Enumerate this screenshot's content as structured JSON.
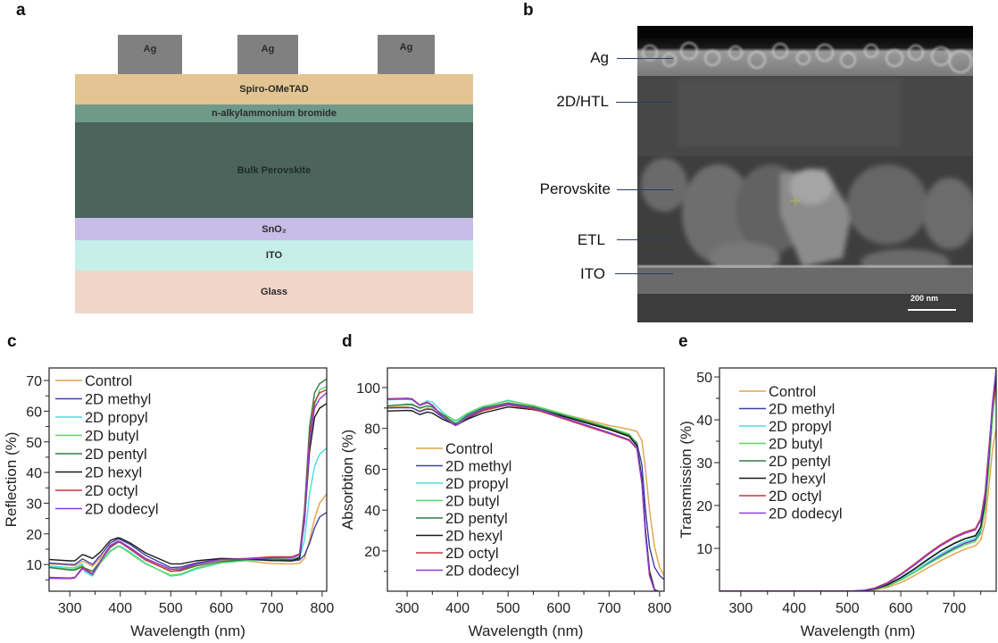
{
  "figure": {
    "panels": {
      "a": {
        "label": "a",
        "title": "Device structure schematic",
        "electrodes": [
          {
            "label": "Ag",
            "color": "#808080"
          },
          {
            "label": "Ag",
            "color": "#808080"
          },
          {
            "label": "Ag",
            "color": "#808080"
          }
        ],
        "layers": [
          {
            "label": "Spiro-OMeTAD",
            "color": "#e2c592"
          },
          {
            "label": "n-alkylammonium bromide",
            "color": "#6f9a8a"
          },
          {
            "label": "Bulk Perovskite",
            "color": "#4c655c"
          },
          {
            "label": "SnO₂",
            "color": "#c8bde6"
          },
          {
            "label": "ITO",
            "color": "#c6efe9"
          },
          {
            "label": "Glass",
            "color": "#f0d5c9"
          }
        ]
      },
      "b": {
        "label": "b",
        "title": "Cross-sectional SEM image",
        "annotations": [
          "Ag",
          "2D/HTL",
          "Perovskite",
          "ETL",
          "ITO"
        ],
        "scale_bar": "200 nm"
      }
    }
  },
  "legend": {
    "series": [
      {
        "name": "Control",
        "color": "#e3a24a"
      },
      {
        "name": "2D methyl",
        "color": "#3f3fa8"
      },
      {
        "name": "2D propyl",
        "color": "#49dde0"
      },
      {
        "name": "2D butyl",
        "color": "#5fd65f"
      },
      {
        "name": "2D pentyl",
        "color": "#2e7d43"
      },
      {
        "name": "2D hexyl",
        "color": "#1a1a1a"
      },
      {
        "name": "2D octyl",
        "color": "#cc3344"
      },
      {
        "name": "2D dodecyl",
        "color": "#8a3fd6"
      }
    ]
  },
  "chart_data": [
    {
      "panel": "c",
      "type": "line",
      "title": "",
      "xlabel": "Wavelength (nm)",
      "ylabel": "Reflection (%)",
      "xlim": [
        259,
        809
      ],
      "ylim": [
        1.3,
        74.1
      ],
      "xticks": [
        300,
        400,
        500,
        600,
        700,
        800
      ],
      "yticks": [
        10,
        20,
        30,
        40,
        50,
        60,
        70
      ],
      "grid": false,
      "legend_position": "upper left",
      "x": [
        260,
        300,
        310,
        325,
        330,
        345,
        360,
        380,
        395,
        400,
        420,
        450,
        500,
        520,
        550,
        600,
        650,
        700,
        740,
        755,
        765,
        775,
        785,
        795,
        809
      ],
      "series": [
        {
          "name": "Control",
          "values": [
            10.2,
            9.8,
            9.6,
            11,
            10.8,
            9.4,
            12,
            16,
            17.5,
            17.4,
            15.5,
            12,
            8.5,
            8.8,
            10,
            11.5,
            11.2,
            10.3,
            10.2,
            10.4,
            12,
            18,
            25,
            30,
            33
          ]
        },
        {
          "name": "2D methyl",
          "values": [
            10.5,
            10,
            10,
            11.8,
            11.4,
            10,
            12.8,
            17,
            18.3,
            18.2,
            16.5,
            13,
            9,
            9.2,
            10.5,
            11.8,
            11.6,
            11.3,
            11.2,
            11.5,
            13,
            17,
            22,
            25.5,
            27
          ]
        },
        {
          "name": "2D propyl",
          "values": [
            9.5,
            9,
            9,
            10.2,
            7.6,
            6.2,
            10.5,
            14.5,
            16,
            16,
            14,
            10.5,
            6.2,
            6.6,
            8.5,
            10.5,
            11.3,
            11.5,
            11.4,
            12,
            18,
            33,
            42,
            46,
            48
          ]
        },
        {
          "name": "2D butyl",
          "values": [
            9.2,
            8.5,
            8.5,
            9.8,
            8.2,
            6.5,
            10.3,
            14.2,
            15.8,
            15.8,
            13.6,
            10.2,
            6.5,
            6.9,
            8.8,
            10.6,
            11.4,
            11.8,
            11.6,
            12.3,
            25,
            50,
            62,
            67,
            68
          ]
        },
        {
          "name": "2D pentyl",
          "values": [
            9.0,
            8.2,
            8.2,
            9.3,
            8.8,
            7.8,
            11,
            15.5,
            17.2,
            17.2,
            15,
            11.5,
            7.8,
            8,
            9.5,
            11,
            11.6,
            11.8,
            11.6,
            12.5,
            28,
            55,
            66,
            69,
            70.5
          ]
        },
        {
          "name": "2D hexyl",
          "values": [
            11.6,
            11.2,
            11.2,
            13.2,
            13,
            12,
            14,
            17.8,
            18.7,
            18.6,
            17,
            13.8,
            10.2,
            10.2,
            11.2,
            12,
            11.8,
            11.3,
            11.2,
            12,
            24,
            47,
            58,
            61,
            62.5
          ]
        },
        {
          "name": "2D octyl",
          "values": [
            5.8,
            5.6,
            5.8,
            9,
            8.6,
            7,
            11,
            15.8,
            17.3,
            17.2,
            15,
            11.5,
            7.8,
            8.2,
            10,
            11.6,
            12,
            12.5,
            12.5,
            13.5,
            26,
            52,
            63,
            66,
            67
          ]
        },
        {
          "name": "2D dodecyl",
          "values": [
            5.5,
            5.4,
            5.6,
            8.6,
            8.2,
            6.8,
            10.8,
            16.2,
            17.6,
            17.5,
            15.4,
            12,
            8.4,
            8.6,
            10.2,
            11.6,
            11.8,
            12.2,
            12.2,
            13.2,
            24,
            50,
            61,
            64,
            66
          ]
        }
      ]
    },
    {
      "panel": "d",
      "type": "line",
      "title": "",
      "xlabel": "Wavelength (nm)",
      "ylabel": "Absorbtion (%)",
      "xlim": [
        261,
        809
      ],
      "ylim": [
        0.3,
        109.6
      ],
      "xticks": [
        300,
        400,
        500,
        600,
        700,
        800
      ],
      "yticks": [
        20,
        40,
        60,
        80,
        100
      ],
      "grid": false,
      "legend_position": "lower left",
      "x": [
        260,
        300,
        310,
        325,
        340,
        350,
        370,
        395,
        400,
        420,
        450,
        500,
        550,
        600,
        650,
        700,
        740,
        755,
        765,
        772,
        780,
        790,
        800,
        809
      ],
      "series": [
        {
          "name": "Control",
          "values": [
            90.5,
            90.5,
            90.2,
            88.5,
            90,
            89.5,
            86,
            82,
            82,
            85,
            88.5,
            91.5,
            90,
            87.5,
            84.5,
            81.5,
            79.5,
            78.5,
            74,
            60,
            40,
            22,
            12,
            8
          ]
        },
        {
          "name": "2D methyl",
          "values": [
            90,
            90.2,
            90,
            88.2,
            89.5,
            89.2,
            85.5,
            81.5,
            81.8,
            85,
            88.8,
            91.8,
            89.8,
            86.8,
            83,
            79.5,
            76.5,
            73,
            62,
            40,
            22,
            12,
            8,
            6
          ]
        },
        {
          "name": "2D propyl",
          "values": [
            94,
            94.2,
            94,
            91.5,
            93.5,
            93,
            88,
            83.5,
            83.8,
            87,
            90.5,
            93.8,
            91,
            87.5,
            83.5,
            80,
            77,
            72,
            55,
            30,
            10,
            1,
            0,
            0
          ]
        },
        {
          "name": "2D butyl",
          "values": [
            91,
            91.5,
            91.5,
            89.8,
            91,
            90.5,
            87,
            84,
            84.2,
            87.5,
            90.8,
            93.5,
            91.2,
            87.8,
            84,
            80.5,
            77.2,
            72.5,
            55,
            30,
            10,
            1,
            0,
            0
          ]
        },
        {
          "name": "2D pentyl",
          "values": [
            91,
            91.8,
            91.8,
            90,
            91,
            90.5,
            86.8,
            82.5,
            82.8,
            86.5,
            90,
            92.5,
            90.5,
            87,
            83.5,
            80,
            76.5,
            72,
            55,
            30,
            10,
            1,
            0,
            0
          ]
        },
        {
          "name": "2D hexyl",
          "values": [
            88.5,
            88.8,
            88.6,
            86.8,
            88,
            87.5,
            84.5,
            81.8,
            82,
            84.5,
            87.5,
            90.5,
            89.2,
            86.5,
            83,
            79.5,
            76,
            71.5,
            55,
            30,
            10,
            1,
            0,
            0
          ]
        },
        {
          "name": "2D octyl",
          "values": [
            94.5,
            94.8,
            94.5,
            91.5,
            92.8,
            91.5,
            86,
            81.5,
            81.8,
            85.5,
            89,
            91.5,
            89.5,
            85.5,
            81.5,
            77.5,
            74,
            70,
            53,
            28,
            8,
            0.5,
            0,
            0
          ]
        },
        {
          "name": "2D dodecyl",
          "values": [
            94.2,
            94.5,
            94.2,
            91.2,
            92.5,
            91.2,
            85.8,
            81.5,
            81.8,
            85.8,
            89.5,
            92,
            90,
            86,
            82,
            78,
            74.5,
            70.5,
            53,
            28,
            8,
            0.5,
            0,
            0
          ]
        }
      ]
    },
    {
      "panel": "e",
      "type": "line",
      "title": "",
      "xlabel": "Wavelength (nm)",
      "ylabel": "Transmission (%)",
      "xlim": [
        260,
        779
      ],
      "ylim": [
        0,
        52.1
      ],
      "xticks": [
        300,
        400,
        500,
        600,
        700
      ],
      "yticks": [
        10,
        20,
        30,
        40,
        50
      ],
      "grid": false,
      "legend_position": "upper left",
      "x": [
        260,
        500,
        530,
        550,
        575,
        600,
        625,
        650,
        675,
        700,
        720,
        740,
        750,
        758,
        765,
        772,
        779
      ],
      "series": [
        {
          "name": "Control",
          "values": [
            0,
            0,
            0.1,
            0.3,
            0.9,
            2.0,
            3.6,
            5.4,
            7.1,
            8.7,
            9.8,
            10.6,
            12,
            16,
            24,
            33,
            38
          ]
        },
        {
          "name": "2D methyl",
          "values": [
            0,
            0,
            0.1,
            0.4,
            1.2,
            2.6,
            4.4,
            6.4,
            8.3,
            10,
            11.2,
            12,
            14,
            20,
            30,
            42,
            52
          ]
        },
        {
          "name": "2D propyl",
          "values": [
            0,
            0,
            0.1,
            0.4,
            1.3,
            2.8,
            4.6,
            6.7,
            8.7,
            10.4,
            11.6,
            12.4,
            14.5,
            21,
            31,
            43,
            51
          ]
        },
        {
          "name": "2D butyl",
          "values": [
            0,
            0,
            0.1,
            0.4,
            1.2,
            2.6,
            4.3,
            6.2,
            8.0,
            9.7,
            10.8,
            11.6,
            13.5,
            19,
            28,
            40,
            48
          ]
        },
        {
          "name": "2D pentyl",
          "values": [
            0,
            0,
            0.1,
            0.5,
            1.5,
            3.2,
            5.2,
            7.4,
            9.5,
            11.2,
            12.3,
            13,
            15,
            21,
            31,
            43,
            50
          ]
        },
        {
          "name": "2D hexyl",
          "values": [
            0,
            0,
            0.1,
            0.5,
            1.5,
            3.1,
            5.1,
            7.3,
            9.4,
            11.1,
            12.2,
            12.9,
            15,
            21,
            31,
            43,
            50
          ]
        },
        {
          "name": "2D octyl",
          "values": [
            0,
            0,
            0.2,
            0.7,
            2.0,
            4.0,
            6.3,
            8.7,
            10.9,
            12.7,
            13.8,
            14.6,
            17,
            23,
            33,
            43,
            48
          ]
        },
        {
          "name": "2D dodecyl",
          "values": [
            0,
            0,
            0.2,
            0.6,
            1.8,
            3.8,
            6.0,
            8.4,
            10.6,
            12.4,
            13.5,
            14.3,
            16.5,
            22,
            32,
            44,
            52
          ]
        }
      ]
    }
  ]
}
